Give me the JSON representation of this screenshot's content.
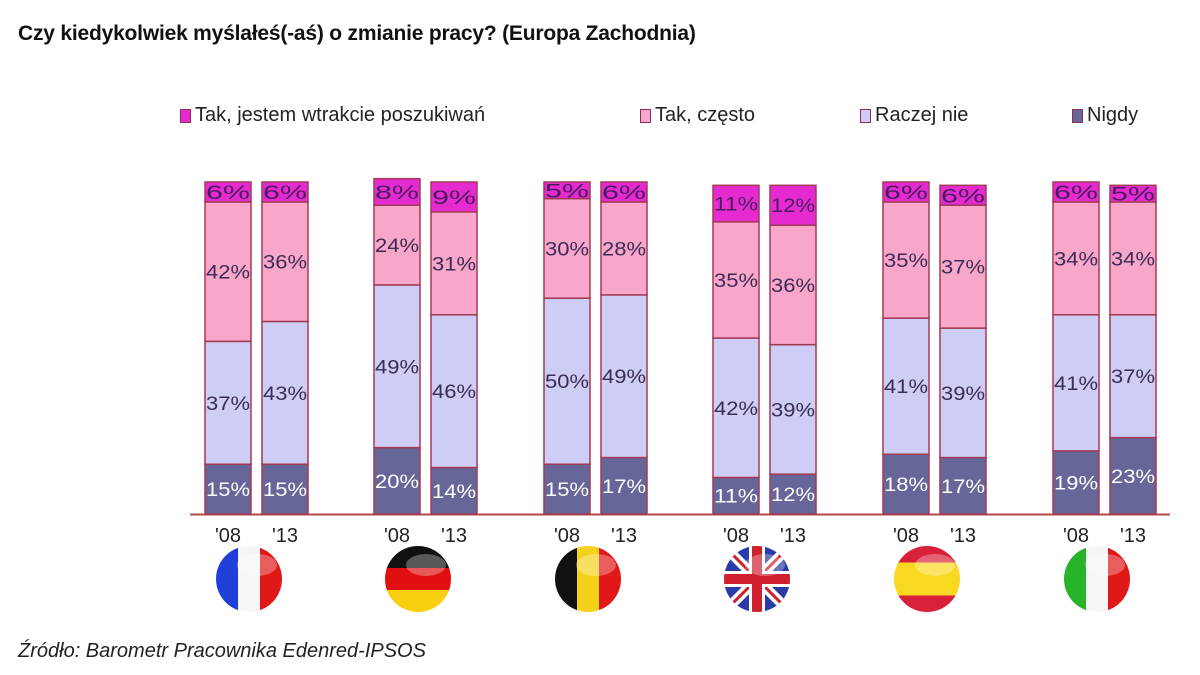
{
  "chart_data": {
    "type": "bar",
    "stacked": true,
    "title": "Czy kiedykolwiek myślałeś(-aś) o zmianie pracy? (Europa Zachodnia)",
    "source": "Źródło: Barometr Pracownika Edenred-IPSOS",
    "legend_position": "top",
    "ylim": [
      0,
      100
    ],
    "unit": "%",
    "groups": [
      {
        "flag_icon": "france-flag-icon",
        "flag": "fr"
      },
      {
        "flag_icon": "germany-flag-icon",
        "flag": "de"
      },
      {
        "flag_icon": "belgium-flag-icon",
        "flag": "be"
      },
      {
        "flag_icon": "uk-flag-icon",
        "flag": "uk"
      },
      {
        "flag_icon": "spain-flag-icon",
        "flag": "es"
      },
      {
        "flag_icon": "italy-flag-icon",
        "flag": "it"
      }
    ],
    "years": [
      "'08",
      "'13"
    ],
    "series": [
      {
        "name": "Nigdy",
        "color": "#676699",
        "label_color": "#ffffff",
        "values": [
          [
            15,
            15
          ],
          [
            20,
            14
          ],
          [
            15,
            17
          ],
          [
            11,
            12
          ],
          [
            18,
            17
          ],
          [
            19,
            23
          ]
        ]
      },
      {
        "name": "Raczej nie",
        "color": "#cdcdf5",
        "label_color": "#3a2c55",
        "values": [
          [
            37,
            43
          ],
          [
            49,
            46
          ],
          [
            50,
            49
          ],
          [
            42,
            39
          ],
          [
            41,
            39
          ],
          [
            41,
            37
          ]
        ]
      },
      {
        "name": "Tak, często",
        "color": "#f8a6c9",
        "label_color": "#3a2c55",
        "values": [
          [
            42,
            36
          ],
          [
            24,
            31
          ],
          [
            30,
            28
          ],
          [
            35,
            36
          ],
          [
            35,
            37
          ],
          [
            34,
            34
          ]
        ]
      },
      {
        "name": "Tak, jestem wtrakcie poszukiwań",
        "color": "#e52ad0",
        "label_color": "#4a1a60",
        "values": [
          [
            6,
            6
          ],
          [
            8,
            9
          ],
          [
            5,
            6
          ],
          [
            11,
            12
          ],
          [
            6,
            6
          ],
          [
            6,
            5
          ]
        ]
      }
    ],
    "legend_order": [
      3,
      2,
      1,
      0
    ]
  }
}
